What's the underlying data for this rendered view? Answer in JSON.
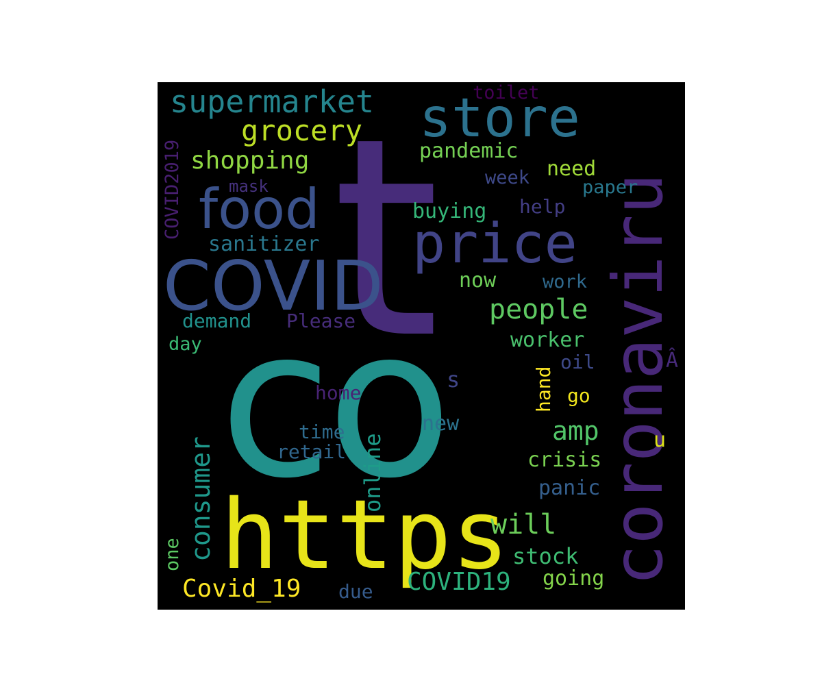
{
  "wordcloud": {
    "words": [
      {
        "text": "co",
        "color": "#21918c"
      },
      {
        "text": "t",
        "color": "#472c7a"
      },
      {
        "text": "https",
        "color": "#e7e419"
      },
      {
        "text": "coronaviru",
        "color": "#482878"
      },
      {
        "text": "COVID",
        "color": "#3b528b"
      },
      {
        "text": "price",
        "color": "#414487"
      },
      {
        "text": "store",
        "color": "#2c728e"
      },
      {
        "text": "food",
        "color": "#3b528b"
      },
      {
        "text": "supermarket",
        "color": "#25858e"
      },
      {
        "text": "grocery",
        "color": "#bddf26"
      },
      {
        "text": "shopping",
        "color": "#90d743"
      },
      {
        "text": "pandemic",
        "color": "#75d054"
      },
      {
        "text": "toilet",
        "color": "#440154"
      },
      {
        "text": "COVID2019",
        "color": "#481f70"
      },
      {
        "text": "need",
        "color": "#a0da39"
      },
      {
        "text": "week",
        "color": "#3e4989"
      },
      {
        "text": "paper",
        "color": "#29788e"
      },
      {
        "text": "mask",
        "color": "#46327e"
      },
      {
        "text": "buying",
        "color": "#35b779"
      },
      {
        "text": "help",
        "color": "#433e85"
      },
      {
        "text": "sanitizer",
        "color": "#2a788e"
      },
      {
        "text": "now",
        "color": "#6ece58"
      },
      {
        "text": "work",
        "color": "#306a8e"
      },
      {
        "text": "people",
        "color": "#5ec962"
      },
      {
        "text": "demand",
        "color": "#21918c"
      },
      {
        "text": "Please",
        "color": "#472d7b"
      },
      {
        "text": "worker",
        "color": "#4ac16d"
      },
      {
        "text": "day",
        "color": "#3bbb75"
      },
      {
        "text": "oil",
        "color": "#3e4a89"
      },
      {
        "text": "Â",
        "color": "#472a7a"
      },
      {
        "text": "s",
        "color": "#404688"
      },
      {
        "text": "home",
        "color": "#482374"
      },
      {
        "text": "hand",
        "color": "#fde725"
      },
      {
        "text": "go",
        "color": "#f1e51d"
      },
      {
        "text": "consumer",
        "color": "#1f988b"
      },
      {
        "text": "online",
        "color": "#1e9c89"
      },
      {
        "text": "amp",
        "color": "#52c569"
      },
      {
        "text": "new",
        "color": "#2c738e"
      },
      {
        "text": "time",
        "color": "#2f6c8e"
      },
      {
        "text": "retail",
        "color": "#31678e"
      },
      {
        "text": "u",
        "color": "#dde318"
      },
      {
        "text": "crisis",
        "color": "#7ad151"
      },
      {
        "text": "panic",
        "color": "#355f8d"
      },
      {
        "text": "will",
        "color": "#6ccd5a"
      },
      {
        "text": "one",
        "color": "#5cc863"
      },
      {
        "text": "stock",
        "color": "#3fbc73"
      },
      {
        "text": "Covid_19",
        "color": "#fde725"
      },
      {
        "text": "COVID19",
        "color": "#2db27d"
      },
      {
        "text": "going",
        "color": "#84d44b"
      },
      {
        "text": "due",
        "color": "#365c8d"
      }
    ]
  }
}
